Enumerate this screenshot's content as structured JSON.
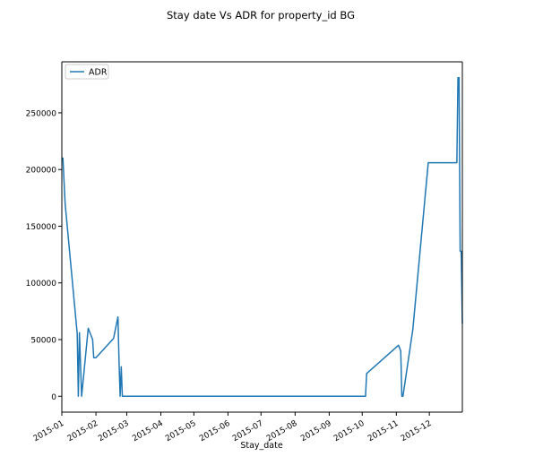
{
  "chart_data": {
    "type": "line",
    "title": "Stay date Vs ADR for property_id BG",
    "xlabel": "Stay_date",
    "ylabel": "",
    "legend": {
      "placement": "upper-left",
      "entries": [
        "ADR"
      ]
    },
    "grid": false,
    "xlim": [
      "2015-01-01",
      "2015-12-31"
    ],
    "ylim": [
      -14000,
      295000
    ],
    "x_ticks": [
      {
        "value": "2015-01-01",
        "label": "2015-01"
      },
      {
        "value": "2015-02-01",
        "label": "2015-02"
      },
      {
        "value": "2015-03-01",
        "label": "2015-03"
      },
      {
        "value": "2015-04-01",
        "label": "2015-04"
      },
      {
        "value": "2015-05-01",
        "label": "2015-05"
      },
      {
        "value": "2015-06-01",
        "label": "2015-06"
      },
      {
        "value": "2015-07-01",
        "label": "2015-07"
      },
      {
        "value": "2015-08-01",
        "label": "2015-08"
      },
      {
        "value": "2015-09-01",
        "label": "2015-09"
      },
      {
        "value": "2015-10-01",
        "label": "2015-10"
      },
      {
        "value": "2015-11-01",
        "label": "2015-11"
      },
      {
        "value": "2015-12-01",
        "label": "2015-12"
      }
    ],
    "y_ticks": [
      {
        "value": 0,
        "label": "0"
      },
      {
        "value": 50000,
        "label": "50000"
      },
      {
        "value": 100000,
        "label": "100000"
      },
      {
        "value": 150000,
        "label": "150000"
      },
      {
        "value": 200000,
        "label": "200000"
      },
      {
        "value": 250000,
        "label": "250000"
      }
    ],
    "series": [
      {
        "name": "ADR",
        "color": "#1f77b4",
        "x": [
          "2015-01-01",
          "2015-01-02",
          "2015-01-04",
          "2015-01-15",
          "2015-01-16",
          "2015-01-17",
          "2015-01-19",
          "2015-01-25",
          "2015-01-29",
          "2015-01-30",
          "2015-02-01",
          "2015-02-17",
          "2015-02-21",
          "2015-02-22",
          "2015-02-23",
          "2015-02-24",
          "2015-02-25",
          "2015-02-27",
          "2015-10-03",
          "2015-10-04",
          "2015-10-05",
          "2015-11-03",
          "2015-11-05",
          "2015-11-06",
          "2015-11-07",
          "2015-11-16",
          "2015-11-30",
          "2015-12-05",
          "2015-12-06",
          "2015-12-07",
          "2015-12-26",
          "2015-12-27",
          "2015-12-28",
          "2015-12-29",
          "2015-12-30",
          "2015-12-31"
        ],
        "values": [
          210000,
          210000,
          170000,
          55000,
          0,
          56000,
          0,
          60000,
          50000,
          34000,
          34000,
          51000,
          70000,
          30000,
          0,
          26000,
          0,
          0,
          0,
          0,
          20000,
          45000,
          40000,
          0,
          0,
          59000,
          206000,
          206000,
          206000,
          206000,
          206000,
          281000,
          281000,
          128000,
          128000,
          64000
        ]
      }
    ]
  }
}
